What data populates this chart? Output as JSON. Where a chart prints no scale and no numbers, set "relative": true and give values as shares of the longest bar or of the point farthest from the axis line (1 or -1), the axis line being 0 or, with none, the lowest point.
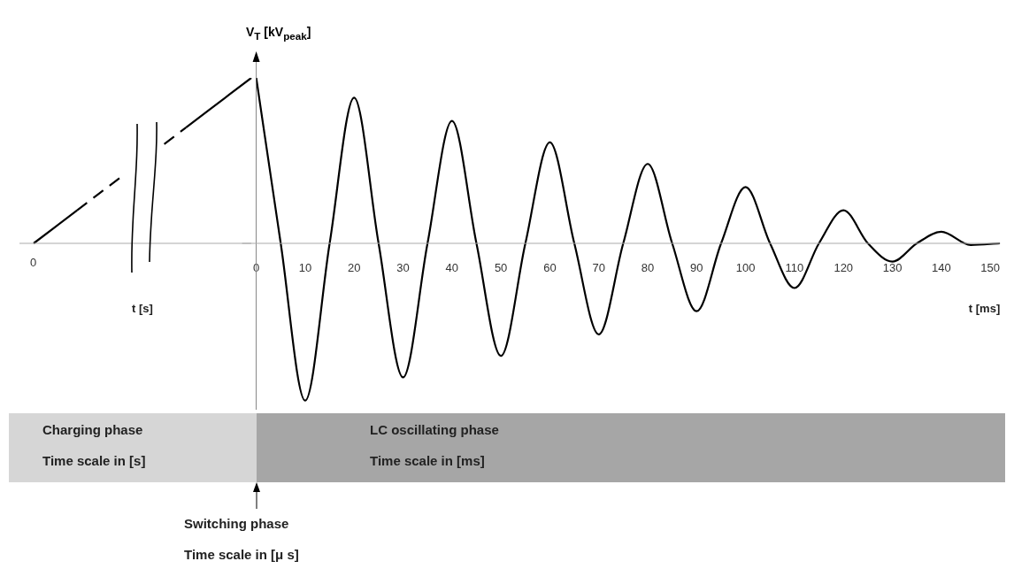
{
  "chart_data": [
    {
      "type": "line",
      "relative": true,
      "xlabel": "t [s]",
      "categories": [
        null,
        null,
        null,
        null,
        null,
        null,
        null,
        null,
        null,
        null,
        null
      ],
      "annotations": [
        "0"
      ],
      "series": [
        {
          "color": "#000000",
          "line_style": "solid",
          "values": [
            0,
            0.1,
            0.2,
            null,
            null,
            null,
            null,
            null,
            null,
            null,
            null
          ]
        },
        {
          "color": "#000000",
          "line_style": "dashed",
          "values": [
            null,
            null,
            0.2,
            0.3,
            0.4,
            null,
            0.6,
            0.7,
            null,
            null,
            null
          ]
        },
        {
          "color": "#000000",
          "line_style": "solid",
          "values": [
            null,
            null,
            null,
            null,
            null,
            null,
            null,
            0.7,
            0.8,
            0.9,
            1
          ]
        }
      ],
      "grid": false,
      "legend": false,
      "marker": "none"
    },
    {
      "type": "line",
      "relative": true,
      "xlabel": "t [ms]",
      "ylabel": "V$_{T}$ [kV$_{peak}$]",
      "xlim": [
        0,
        152
      ],
      "xticks": [
        0,
        10,
        20,
        30,
        40,
        50,
        60,
        70,
        80,
        90,
        100,
        110,
        120,
        130,
        140,
        150
      ],
      "series": [
        {
          "color": "#000000",
          "line_style": "solid",
          "x": [
            0,
            5,
            10,
            15,
            20,
            25,
            30,
            35,
            40,
            45,
            50,
            55,
            60,
            65,
            70,
            75,
            80,
            85,
            90,
            95,
            100,
            105,
            110,
            115,
            120,
            125,
            130,
            135,
            140,
            146,
            152
          ],
          "values": [
            1,
            0,
            -0.95,
            0,
            0.88,
            0,
            -0.81,
            0,
            0.74,
            0,
            -0.68,
            0,
            0.61,
            0,
            -0.55,
            0,
            0.48,
            0,
            -0.41,
            0,
            0.34,
            0,
            -0.27,
            0,
            0.2,
            0,
            -0.11,
            0,
            0.07,
            -0.01,
            0
          ]
        }
      ],
      "annotations": [
        "Charging phase",
        "Time scale in [s]",
        "LC oscillating phase",
        "Time scale in [ms]",
        "Switching phase",
        "Time scale in [μ s]"
      ],
      "grid": false,
      "legend": false,
      "marker": "none"
    }
  ]
}
